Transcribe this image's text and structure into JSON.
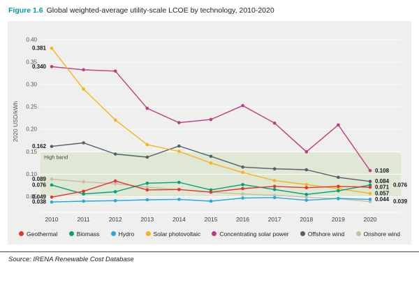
{
  "header": {
    "figure_label": "Figure 1.6",
    "title": "Global weighted-average utility-scale LCOE by technology, 2010-2020"
  },
  "footer": {
    "source": "Source: IRENA Renewable Cost Database"
  },
  "colors": {
    "accent_teal": "#0099a8",
    "panel_background": "#eff0ed",
    "band_fill": "#dfe8d5",
    "gridline": "#ffffff"
  },
  "chart_data": {
    "type": "line",
    "title": "Global weighted-average utility-scale LCOE by technology, 2010-2020",
    "xlabel": "",
    "ylabel": "2020 USD/kWh",
    "x": [
      2010,
      2011,
      2012,
      2013,
      2014,
      2015,
      2016,
      2017,
      2018,
      2019,
      2020
    ],
    "y_ticks": [
      0.05,
      0.1,
      0.15,
      0.2,
      0.25,
      0.3,
      0.35,
      0.4
    ],
    "ylim": [
      0.015,
      0.42
    ],
    "grid": true,
    "legend_position": "bottom",
    "band": {
      "label": "High band",
      "from": 0.05,
      "to": 0.15,
      "color": "#dfe8d5"
    },
    "series": [
      {
        "name": "Geothermal",
        "color": "#e5352b",
        "values": [
          0.049,
          0.062,
          0.085,
          0.065,
          0.066,
          0.06,
          0.068,
          0.073,
          0.07,
          0.073,
          0.071
        ]
      },
      {
        "name": "Biomass",
        "color": "#00a17a",
        "values": [
          0.076,
          0.056,
          0.061,
          0.08,
          0.082,
          0.065,
          0.077,
          0.066,
          0.055,
          0.063,
          0.076
        ]
      },
      {
        "name": "Hydro",
        "color": "#23a8e0",
        "values": [
          0.038,
          0.04,
          0.041,
          0.043,
          0.044,
          0.04,
          0.047,
          0.048,
          0.042,
          0.046,
          0.044
        ]
      },
      {
        "name": "Solar photovoltaic",
        "color": "#f9b21d",
        "values": [
          0.381,
          0.29,
          0.221,
          0.166,
          0.151,
          0.125,
          0.104,
          0.086,
          0.077,
          0.068,
          0.057
        ]
      },
      {
        "name": "Concentrating solar power",
        "color": "#c23b80",
        "values": [
          0.34,
          0.333,
          0.33,
          0.247,
          0.215,
          0.222,
          0.253,
          0.214,
          0.15,
          0.21,
          0.108
        ]
      },
      {
        "name": "Offshore wind",
        "color": "#556066",
        "values": [
          0.162,
          0.17,
          0.145,
          0.138,
          0.163,
          0.14,
          0.116,
          0.112,
          0.11,
          0.093,
          0.084
        ]
      },
      {
        "name": "Onshore wind",
        "color": "#c9bda3",
        "values": [
          0.089,
          0.083,
          0.079,
          0.071,
          0.066,
          0.06,
          0.056,
          0.053,
          0.049,
          0.045,
          0.039
        ]
      }
    ]
  }
}
